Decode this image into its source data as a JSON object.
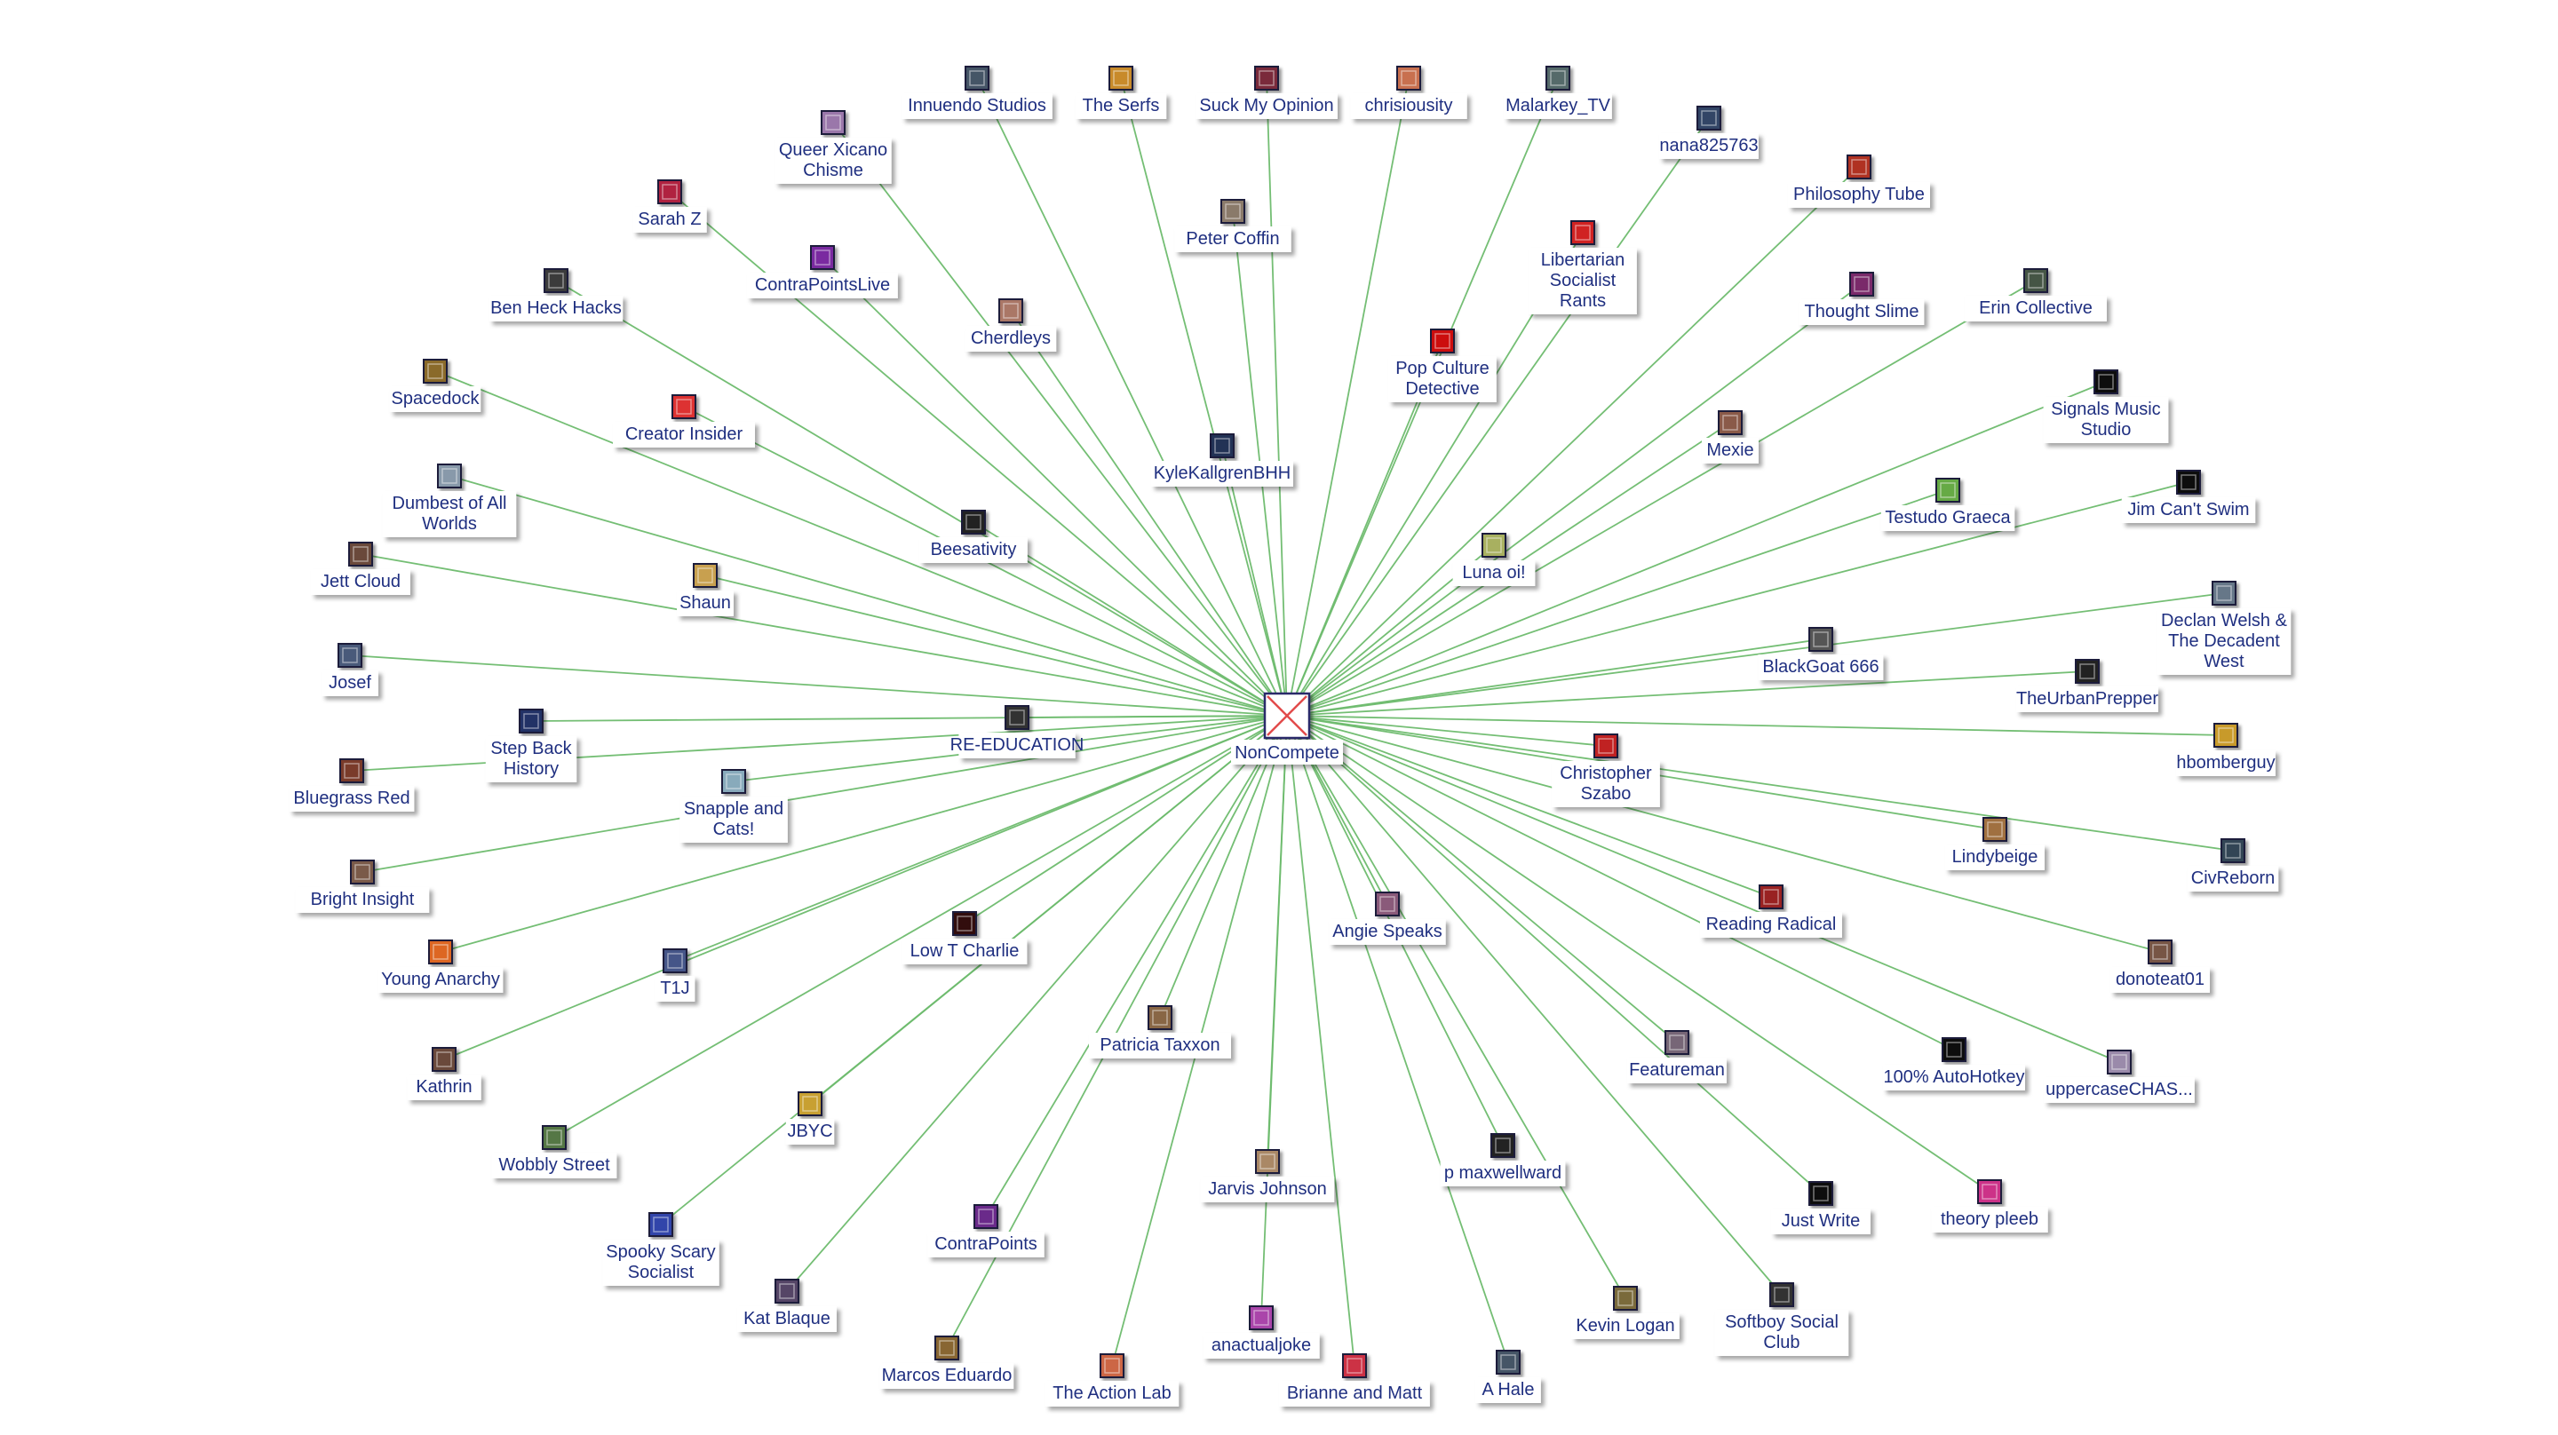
{
  "hub": {
    "label": "NonCompete"
  },
  "nodes": [
    {
      "label": "Innuendo Studios",
      "color": "#445566"
    },
    {
      "label": "The Serfs",
      "color": "#c88a2a"
    },
    {
      "label": "Suck My Opinion",
      "color": "#7a2a3a"
    },
    {
      "label": "chrisiousity",
      "color": "#c87050"
    },
    {
      "label": "Malarkey_TV",
      "color": "#556a6a"
    },
    {
      "label": "Queer Xicano Chisme",
      "color": "#9a77aa"
    },
    {
      "label": "nana825763",
      "color": "#334466"
    },
    {
      "label": "Sarah Z",
      "color": "#b02040"
    },
    {
      "label": "Philosophy Tube",
      "color": "#b03020"
    },
    {
      "label": "Peter Coffin",
      "color": "#8a7a6a"
    },
    {
      "label": "Libertarian Socialist Rants",
      "color": "#d02020"
    },
    {
      "label": "ContraPointsLive",
      "color": "#7a2aa0"
    },
    {
      "label": "Ben Heck Hacks",
      "color": "#3a3a3a"
    },
    {
      "label": "Thought Slime",
      "color": "#7a2a6a"
    },
    {
      "label": "Erin Collective",
      "color": "#445544"
    },
    {
      "label": "Cherdleys",
      "color": "#aa7766"
    },
    {
      "label": "Pop Culture Detective",
      "color": "#cc1111"
    },
    {
      "label": "Spacedock",
      "color": "#8a6a2a"
    },
    {
      "label": "Signals Music Studio",
      "color": "#111111"
    },
    {
      "label": "Creator Insider",
      "color": "#dd3333"
    },
    {
      "label": "Mexie",
      "color": "#8a5a4a"
    },
    {
      "label": "KyleKallgrenBHH",
      "color": "#223355"
    },
    {
      "label": "Testudo Graeca",
      "color": "#66aa44"
    },
    {
      "label": "Jim Can't Swim",
      "color": "#111111"
    },
    {
      "label": "Dumbest of All Worlds",
      "color": "#8899aa"
    },
    {
      "label": "Beesativity",
      "color": "#222222"
    },
    {
      "label": "Luna oi!",
      "color": "#a8b060"
    },
    {
      "label": "Jett Cloud",
      "color": "#6a4a3a"
    },
    {
      "label": "Shaun",
      "color": "#c8a050"
    },
    {
      "label": "Declan Welsh & The Decadent West",
      "color": "#667788"
    },
    {
      "label": "BlackGoat 666",
      "color": "#555555"
    },
    {
      "label": "Josef",
      "color": "#4a5a7a"
    },
    {
      "label": "TheUrbanPrepper",
      "color": "#222222"
    },
    {
      "label": "RE-EDUCATION",
      "color": "#333333"
    },
    {
      "label": "Step Back History",
      "color": "#223366"
    },
    {
      "label": "hbomberguy",
      "color": "#c89a2a"
    },
    {
      "label": "Christopher Szabo",
      "color": "#c02020"
    },
    {
      "label": "Bluegrass Red",
      "color": "#7a3a2a"
    },
    {
      "label": "Snapple and Cats!",
      "color": "#88aabb"
    },
    {
      "label": "Lindybeige",
      "color": "#a07040"
    },
    {
      "label": "CivReborn",
      "color": "#334455"
    },
    {
      "label": "Bright Insight",
      "color": "#7a5a4a"
    },
    {
      "label": "Low T Charlie",
      "color": "#331111"
    },
    {
      "label": "Angie Speaks",
      "color": "#8a5a7a"
    },
    {
      "label": "Reading Radical",
      "color": "#992222"
    },
    {
      "label": "Young Anarchy",
      "color": "#dd6622"
    },
    {
      "label": "T1J",
      "color": "#445588"
    },
    {
      "label": "donoteat01",
      "color": "#775544"
    },
    {
      "label": "Patricia Taxxon",
      "color": "#886644"
    },
    {
      "label": "Kathrin",
      "color": "#6a4a3a"
    },
    {
      "label": "Featureman",
      "color": "#776677"
    },
    {
      "label": "100% AutoHotkey",
      "color": "#111111"
    },
    {
      "label": "uppercaseCHAS...",
      "color": "#9a8aaa"
    },
    {
      "label": "JBYC",
      "color": "#c8a030"
    },
    {
      "label": "Wobbly Street",
      "color": "#557744"
    },
    {
      "label": "p maxwellward",
      "color": "#222222"
    },
    {
      "label": "Jarvis Johnson",
      "color": "#aa8866"
    },
    {
      "label": "Just Write",
      "color": "#111111"
    },
    {
      "label": "theory pleeb",
      "color": "#cc3388"
    },
    {
      "label": "Spooky Scary Socialist",
      "color": "#3344aa"
    },
    {
      "label": "ContraPoints",
      "color": "#6a2a8a"
    },
    {
      "label": "Kat Blaque",
      "color": "#554466"
    },
    {
      "label": "Kevin Logan",
      "color": "#7a6a3a"
    },
    {
      "label": "anactualjoke",
      "color": "#aa44aa"
    },
    {
      "label": "Softboy Social Club",
      "color": "#333333"
    },
    {
      "label": "Marcos Eduardo",
      "color": "#886633"
    },
    {
      "label": "The Action Lab",
      "color": "#cc6644"
    },
    {
      "label": "Brianne and Matt",
      "color": "#cc3344"
    },
    {
      "label": "A Hale",
      "color": "#445566"
    }
  ]
}
